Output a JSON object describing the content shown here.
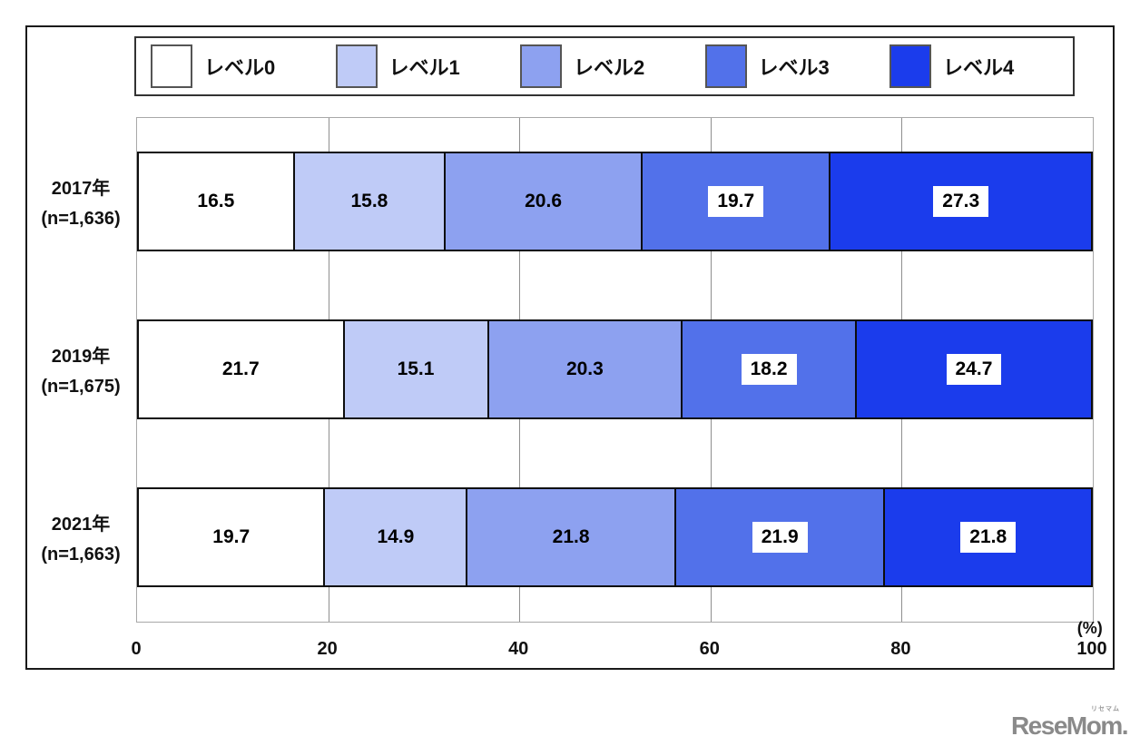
{
  "chart_data": {
    "type": "bar",
    "variant": "horizontal-stacked",
    "title": "",
    "xlabel": "",
    "ylabel": "",
    "unit_label": "(%)",
    "xlim": [
      0,
      100
    ],
    "x_ticks": [
      "0",
      "20",
      "40",
      "60",
      "80",
      "100"
    ],
    "x_tick_values": [
      0,
      20,
      40,
      60,
      80,
      100
    ],
    "grid": true,
    "legend_position": "top",
    "categories": [
      "レベル0",
      "レベル1",
      "レベル2",
      "レベル3",
      "レベル4"
    ],
    "series_colors": [
      "#ffffff",
      "#bfcbf7",
      "#8da1f0",
      "#5271ea",
      "#1b3cec"
    ],
    "boxed_value_categories": [
      "レベル3",
      "レベル4"
    ],
    "rows": [
      {
        "label": "2017年",
        "n_label": "(n=1,636)",
        "values": [
          16.5,
          15.8,
          20.6,
          19.7,
          27.3
        ]
      },
      {
        "label": "2019年",
        "n_label": "(n=1,675)",
        "values": [
          21.7,
          15.1,
          20.3,
          18.2,
          24.7
        ]
      },
      {
        "label": "2021年",
        "n_label": "(n=1,663)",
        "values": [
          19.7,
          14.9,
          21.8,
          21.9,
          21.8
        ]
      }
    ]
  },
  "legend": {
    "items": [
      {
        "label": "レベル0",
        "color": "#ffffff"
      },
      {
        "label": "レベル1",
        "color": "#bfcbf7"
      },
      {
        "label": "レベル2",
        "color": "#8da1f0"
      },
      {
        "label": "レベル3",
        "color": "#5271ea"
      },
      {
        "label": "レベル4",
        "color": "#1b3cec"
      }
    ]
  },
  "footer": {
    "logo_text": "ReseMom.",
    "logo_ruby": "リセマム"
  }
}
